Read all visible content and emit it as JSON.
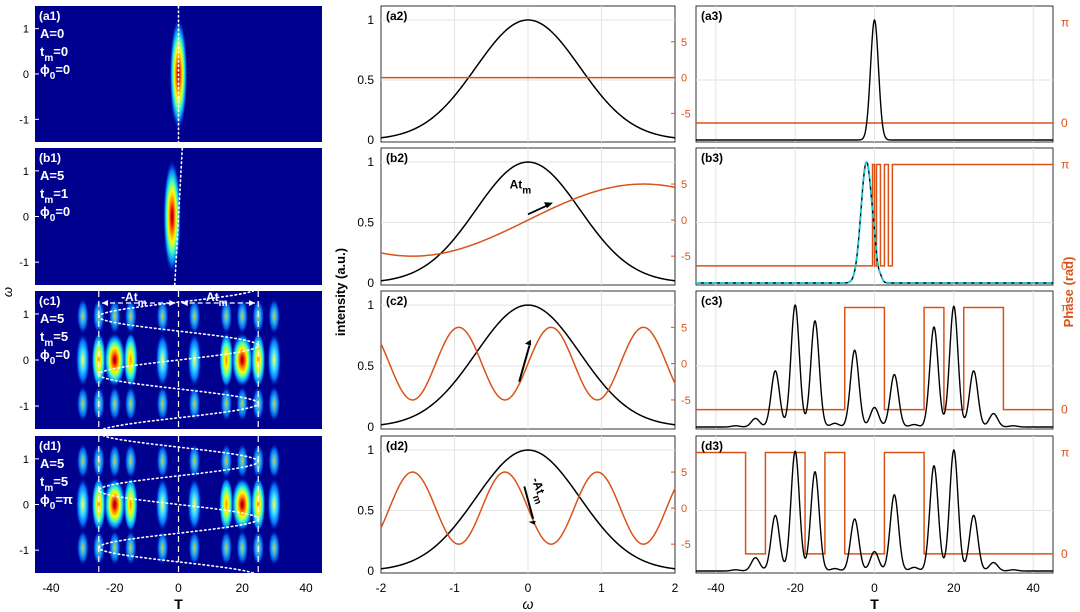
{
  "figure": {
    "colors": {
      "intensity": "#000000",
      "phase": "#d95319",
      "dashed_overlay": "#1fc8d8",
      "heatmap_bg": "#00008f",
      "guide": "#ffffff"
    },
    "left_column": {
      "xlabel": "T",
      "ylabel": "ω",
      "xticks": [
        "-40",
        "-20",
        "0",
        "20",
        "40"
      ],
      "yticks": [
        "1",
        "0",
        "-1"
      ]
    },
    "mid_column": {
      "xlabel": "ω",
      "ylabel": "intensity (a.u.)",
      "xticks": [
        "-2",
        "-1",
        "0",
        "1",
        "2"
      ],
      "yticks": [
        "1",
        "0.5",
        "0"
      ],
      "right_yticks": [
        "5",
        "0",
        "-5"
      ]
    },
    "right_column": {
      "xlabel": "T",
      "ylabel": "Phase (rad)",
      "xticks": [
        "-40",
        "-20",
        "0",
        "20",
        "40"
      ],
      "right_yticks": [
        "π",
        "0"
      ]
    },
    "panels": [
      {
        "heat": "(a1)",
        "params": [
          "A=0",
          "t_m=0",
          "φ_0=0"
        ],
        "mid": "(a2)",
        "right": "(a3)"
      },
      {
        "heat": "(b1)",
        "params": [
          "A=5",
          "t_m=1",
          "φ_0=0"
        ],
        "mid": "(b2)",
        "right": "(b3)",
        "arrow_label": "At_m"
      },
      {
        "heat": "(c1)",
        "params": [
          "A=5",
          "t_m=5",
          "φ_0=0"
        ],
        "mid": "(c2)",
        "right": "(c3)",
        "span_labels": [
          "-At_m",
          "At_m"
        ]
      },
      {
        "heat": "(d1)",
        "params": [
          "A=5",
          "t_m=5",
          "φ_0=π"
        ],
        "mid": "(d2)",
        "right": "(d3)",
        "arrow_label": "-At_m"
      }
    ]
  },
  "chart_data": [
    {
      "type": "heatmap",
      "panel": "(a1)",
      "xlim": [
        -45,
        45
      ],
      "ylim": [
        -1.5,
        1.5
      ],
      "xlabel": "",
      "ylabel": "ω",
      "params": {
        "A": 0,
        "t_m": 0,
        "phi_0": 0
      },
      "blobs": [
        {
          "T": 0,
          "omega": 0,
          "peak": 1
        }
      ]
    },
    {
      "type": "heatmap",
      "panel": "(b1)",
      "xlim": [
        -45,
        45
      ],
      "ylim": [
        -1.5,
        1.5
      ],
      "xlabel": "",
      "ylabel": "ω",
      "params": {
        "A": 5,
        "t_m": 1,
        "phi_0": 0
      },
      "blobs": [
        {
          "T": -2,
          "omega": 0,
          "peak": 1
        }
      ]
    },
    {
      "type": "heatmap",
      "panel": "(c1)",
      "xlim": [
        -45,
        45
      ],
      "ylim": [
        -1.5,
        1.5
      ],
      "xlabel": "",
      "ylabel": "ω",
      "params": {
        "A": 5,
        "t_m": 5,
        "phi_0": 0
      },
      "blobs_T": [
        -30,
        -25,
        -20,
        -15,
        -5,
        5,
        15,
        20,
        25,
        30
      ],
      "peak_T": [
        -20,
        20
      ]
    },
    {
      "type": "heatmap",
      "panel": "(d1)",
      "xlim": [
        -45,
        45
      ],
      "ylim": [
        -1.5,
        1.5
      ],
      "xlabel": "T",
      "ylabel": "ω",
      "params": {
        "A": 5,
        "t_m": 5,
        "phi_0": "π"
      },
      "blobs_T": [
        -30,
        -25,
        -20,
        -15,
        -5,
        5,
        15,
        20,
        25,
        30
      ],
      "peak_T": [
        -20,
        20
      ]
    },
    {
      "type": "line",
      "panel": "(a2)",
      "xlim": [
        -2,
        2
      ],
      "ylim": [
        0,
        1.05
      ],
      "y2lim": [
        -9,
        10
      ],
      "series": [
        {
          "axis": "left",
          "function": "exp(-omega^2)"
        },
        {
          "axis": "right",
          "function": "0"
        }
      ]
    },
    {
      "type": "line",
      "panel": "(b2)",
      "xlim": [
        -2,
        2
      ],
      "ylim": [
        0,
        1.05
      ],
      "y2lim": [
        -9,
        10
      ],
      "series": [
        {
          "axis": "left",
          "function": "exp(-omega^2)"
        },
        {
          "axis": "right",
          "function": "5*sin(omega)"
        }
      ]
    },
    {
      "type": "line",
      "panel": "(c2)",
      "xlim": [
        -2,
        2
      ],
      "ylim": [
        0,
        1.05
      ],
      "y2lim": [
        -9,
        10
      ],
      "series": [
        {
          "axis": "left",
          "function": "exp(-omega^2)"
        },
        {
          "axis": "right",
          "function": "5*sin(5*omega)"
        }
      ]
    },
    {
      "type": "line",
      "panel": "(d2)",
      "xlim": [
        -2,
        2
      ],
      "ylim": [
        0,
        1.05
      ],
      "y2lim": [
        -9,
        10
      ],
      "series": [
        {
          "axis": "left",
          "function": "exp(-omega^2)"
        },
        {
          "axis": "right",
          "function": "-5*sin(5*omega)"
        }
      ]
    },
    {
      "type": "line",
      "panel": "(a3)",
      "xlim": [
        -45,
        45
      ],
      "ylim": [
        0,
        1.05
      ],
      "peaks": [
        {
          "T": 0,
          "height": 1,
          "width": 1
        }
      ],
      "phase": [
        {
          "from": -45,
          "to": 45,
          "value": "0"
        }
      ]
    },
    {
      "type": "line",
      "panel": "(b3)",
      "xlim": [
        -45,
        45
      ],
      "ylim": [
        0,
        1.05
      ],
      "peaks": [
        {
          "T": -2,
          "height": 1,
          "width": 1.4
        },
        {
          "T": 0,
          "height": 0.07,
          "width": 0.5
        },
        {
          "T": 1.5,
          "height": 0.03,
          "width": 0.5
        }
      ],
      "phase_steps_pi": [
        -0.5,
        0,
        0.5,
        1.5,
        2.5,
        3.5,
        4.5
      ]
    },
    {
      "type": "line",
      "panel": "(c3)",
      "xlim": [
        -45,
        45
      ],
      "ylim": [
        0,
        1.05
      ],
      "peaks_T": [
        -35,
        -30,
        -25,
        -20,
        -15,
        -10,
        -5,
        0,
        5,
        10,
        15,
        20,
        25,
        30,
        35
      ],
      "peaks_height": [
        0.01,
        0.07,
        0.46,
        1.0,
        0.87,
        0.03,
        0.63,
        0.16,
        0.43,
        0.02,
        0.82,
        0.99,
        0.46,
        0.11,
        0.01
      ],
      "phase_pi_ranges": [
        [
          -7.5,
          2.5
        ],
        [
          12.5,
          17.5
        ],
        [
          22.5,
          32.5
        ]
      ]
    },
    {
      "type": "line",
      "panel": "(d3)",
      "xlim": [
        -45,
        45
      ],
      "ylim": [
        0,
        1.05
      ],
      "peaks_T": [
        -35,
        -30,
        -25,
        -20,
        -15,
        -10,
        -5,
        0,
        5,
        10,
        15,
        20,
        25,
        30,
        35
      ],
      "peaks_height": [
        0.01,
        0.11,
        0.46,
        0.99,
        0.82,
        0.02,
        0.43,
        0.16,
        0.63,
        0.03,
        0.87,
        1.0,
        0.46,
        0.07,
        0.01
      ],
      "phase_pi_ranges": [
        [
          -45,
          -32.5
        ],
        [
          -27.5,
          -17.5
        ],
        [
          -12.5,
          -7.5
        ],
        [
          2.5,
          12.5
        ]
      ]
    }
  ]
}
